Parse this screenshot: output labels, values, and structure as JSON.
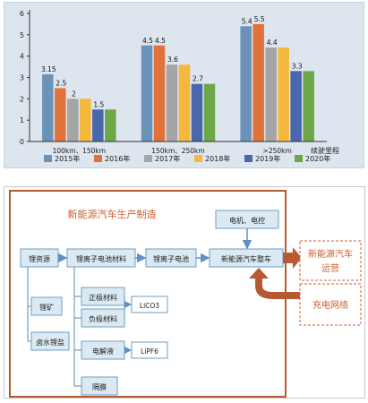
{
  "chart_data": {
    "type": "bar",
    "categories": [
      "100km、150km",
      "150km、250km",
      ">250km"
    ],
    "x_axis_label": "续驶里程",
    "ylim": [
      0,
      6
    ],
    "y_ticks": [
      "0",
      "1",
      "2",
      "3",
      "4",
      "5",
      "6"
    ],
    "grid": false,
    "legend_position": "bottom",
    "series": [
      {
        "name": "2015年",
        "color": "#6b93ba",
        "values": [
          3.15,
          4.5,
          5.4
        ],
        "labels": [
          "3.15",
          "4.5",
          "5.4"
        ]
      },
      {
        "name": "2016年",
        "color": "#e1733a",
        "values": [
          2.5,
          4.5,
          5.5
        ],
        "labels": [
          "2.5",
          "4.5",
          "5.5"
        ]
      },
      {
        "name": "2017年",
        "color": "#a5a5a5",
        "values": [
          2,
          3.6,
          4.4
        ],
        "labels": [
          "2",
          "3.6",
          "4.4"
        ]
      },
      {
        "name": "2018年",
        "color": "#f3b83c",
        "values": [
          2,
          3.6,
          4.4
        ],
        "labels": [
          "",
          "",
          ""
        ]
      },
      {
        "name": "2019年",
        "color": "#4a67ad",
        "values": [
          1.5,
          2.7,
          3.3
        ],
        "labels": [
          "1.5",
          "2.7",
          "3.3"
        ]
      },
      {
        "name": "2020年",
        "color": "#6ca847",
        "values": [
          1.5,
          2.7,
          3.3
        ],
        "labels": [
          "",
          "",
          ""
        ]
      }
    ]
  },
  "diagram": {
    "title": "新能源汽车生产制造",
    "nodes": {
      "lithium_resource": "锂资源",
      "battery_material": "锂离子电池材料",
      "battery": "锂离子电池",
      "vehicle": "新能源汽车整车",
      "motor_control": "电机、电控",
      "lithium_ore": "锂矿",
      "brine_lithium": "卤水锂盐",
      "cathode": "正极材料",
      "anode": "负极材料",
      "electrolyte": "电解液",
      "separator": "隔膜",
      "licoo2": "LiCO3",
      "lipf6": "LiPF6",
      "operation": "新能源汽车运营",
      "operation_line1": "新能源汽车",
      "operation_line2": "运营",
      "charging": "充电网络"
    },
    "colors": {
      "frame": "#b45a32",
      "accent_text": "#c9602e",
      "node_fill": "#dbe9f3",
      "node_border": "#6d9ec4",
      "arrow": "#5f90c0",
      "big_arrow": "#b75a33"
    }
  }
}
